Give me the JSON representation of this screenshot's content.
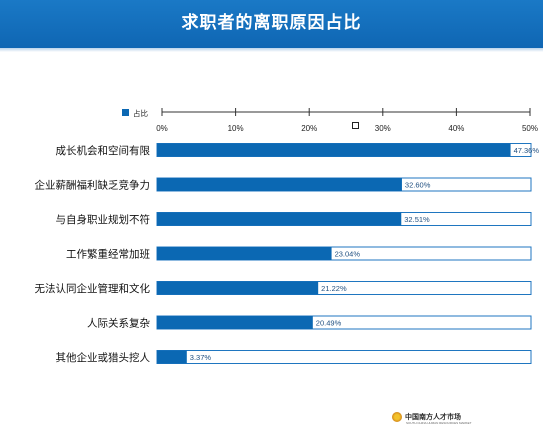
{
  "page": {
    "title": "求职者的离职原因占比"
  },
  "footer": {
    "logo_text": "中国南方人才市场",
    "logo_subtext": "SOUTH CHINA HUMAN RESOURCES MARKET"
  },
  "colors": {
    "header": "#1168b5",
    "bar_fill": "#0b68b3",
    "bar_border": "#1f76c0",
    "axis": "#333333"
  },
  "chart_data": {
    "type": "bar",
    "orientation": "horizontal",
    "title": "求职者的离职原因占比",
    "legend": {
      "label": "占比",
      "position": "top-left"
    },
    "categories": [
      "成长机会和空间有限",
      "企业薪酬福利缺乏竞争力",
      "与自身职业规划不符",
      "工作繁重经常加班",
      "无法认同企业管理和文化",
      "人际关系复杂",
      "其他企业或猎头挖人"
    ],
    "values": [
      47.36,
      32.6,
      32.51,
      23.04,
      21.22,
      20.49,
      3.37
    ],
    "value_labels": [
      "47.36%",
      "32.60%",
      "32.51%",
      "23.04%",
      "21.22%",
      "20.49%",
      "3.37%"
    ],
    "xlim": [
      0,
      50
    ],
    "xticks": [
      0,
      10,
      20,
      30,
      40,
      50
    ],
    "xtick_labels": [
      "0%",
      "10%",
      "20%",
      "30%",
      "40%",
      "50%"
    ],
    "grid": false
  }
}
